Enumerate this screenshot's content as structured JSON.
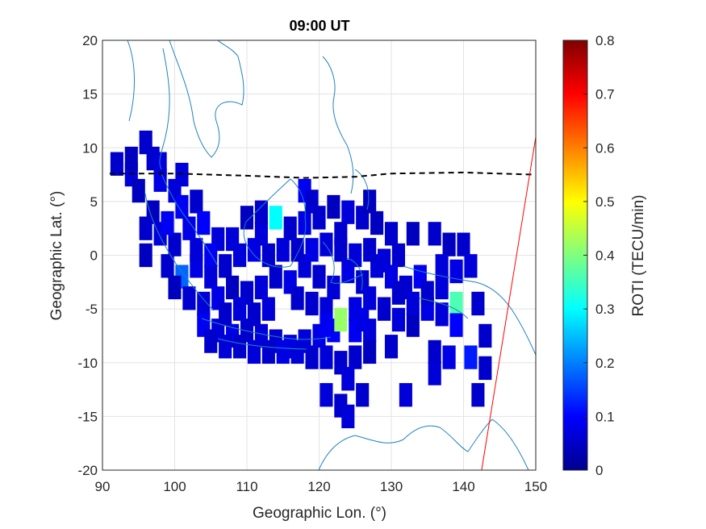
{
  "chart_data": {
    "type": "heatmap",
    "title": "09:00 UT",
    "xlabel": "Geographic Lon. (°)",
    "ylabel": "Geographic Lat. (°)",
    "xlim": [
      90,
      150
    ],
    "ylim": [
      -20,
      20
    ],
    "xticks": [
      "90",
      "100",
      "110",
      "120",
      "130",
      "140",
      "150"
    ],
    "yticks": [
      "20",
      "15",
      "10",
      "5",
      "0",
      "-5",
      "-10",
      "-15",
      "-20"
    ],
    "grid": true,
    "colorbar": {
      "label": "ROTI (TECU/min)",
      "range": [
        0,
        0.8
      ],
      "ticks": [
        "0",
        "0.1",
        "0.2",
        "0.3",
        "0.4",
        "0.5",
        "0.6",
        "0.7",
        "0.8"
      ],
      "colormap": "jet"
    },
    "magnetic_equator": {
      "style": "dashed",
      "color": "#000000",
      "x": [
        91,
        100,
        110,
        118,
        125,
        130,
        140,
        150
      ],
      "y": [
        7.6,
        7.6,
        7.4,
        7.2,
        7.3,
        7.6,
        7.7,
        7.5
      ]
    },
    "terminator": {
      "color": "#ff0000",
      "x": [
        142.5,
        150
      ],
      "y": [
        -20,
        11
      ]
    },
    "roti_cells": [
      [
        92,
        8.5,
        0.06
      ],
      [
        94,
        7.5,
        0.07
      ],
      [
        95,
        6,
        0.05
      ],
      [
        97,
        9,
        0.06
      ],
      [
        98,
        7,
        0.08
      ],
      [
        100,
        6,
        0.07
      ],
      [
        101,
        4.5,
        0.09
      ],
      [
        103,
        5,
        0.06
      ],
      [
        97,
        4,
        0.05
      ],
      [
        96,
        2.5,
        0.06
      ],
      [
        98,
        2,
        0.07
      ],
      [
        100,
        1,
        0.06
      ],
      [
        102,
        2.5,
        0.08
      ],
      [
        104,
        3,
        0.1
      ],
      [
        106,
        1.5,
        0.07
      ],
      [
        96,
        0,
        0.05
      ],
      [
        99,
        -1,
        0.06
      ],
      [
        101,
        -2,
        0.18
      ],
      [
        103,
        -1,
        0.08
      ],
      [
        105,
        -2,
        0.07
      ],
      [
        107,
        -1,
        0.06
      ],
      [
        109,
        0,
        0.07
      ],
      [
        111,
        0.5,
        0.08
      ],
      [
        113,
        0,
        0.06
      ],
      [
        110,
        3.5,
        0.05
      ],
      [
        114,
        3.5,
        0.3
      ],
      [
        112,
        2,
        0.07
      ],
      [
        116,
        2.5,
        0.06
      ],
      [
        118,
        3,
        0.08
      ],
      [
        120,
        3.5,
        0.06
      ],
      [
        122,
        4.5,
        0.05
      ],
      [
        124,
        4,
        0.07
      ],
      [
        126,
        3.5,
        0.06
      ],
      [
        128,
        3,
        0.05
      ],
      [
        118,
        6,
        0.09
      ],
      [
        130,
        2,
        0.06
      ],
      [
        131,
        0,
        0.06
      ],
      [
        133,
        2,
        0.05
      ],
      [
        136,
        2,
        0.06
      ],
      [
        138,
        1,
        0.05
      ],
      [
        140,
        1,
        0.06
      ],
      [
        137,
        -1,
        0.07
      ],
      [
        139,
        -1.5,
        0.08
      ],
      [
        141,
        -1,
        0.07
      ],
      [
        134,
        -2,
        0.09
      ],
      [
        132,
        -3,
        0.06
      ],
      [
        130,
        -2,
        0.08
      ],
      [
        128,
        -1,
        0.07
      ],
      [
        126,
        -2.5,
        0.06
      ],
      [
        124,
        -1.5,
        0.08
      ],
      [
        122,
        -3,
        0.07
      ],
      [
        120,
        -2,
        0.06
      ],
      [
        118,
        -1,
        0.07
      ],
      [
        116,
        -2.5,
        0.08
      ],
      [
        114,
        -2,
        0.06
      ],
      [
        112,
        -3,
        0.07
      ],
      [
        110,
        -3.5,
        0.06
      ],
      [
        108,
        -3,
        0.05
      ],
      [
        106,
        -4,
        0.08
      ],
      [
        104,
        -4.5,
        0.07
      ],
      [
        102,
        -4,
        0.06
      ],
      [
        100,
        -3,
        0.05
      ],
      [
        104,
        -6.5,
        0.09
      ],
      [
        106,
        -7,
        0.07
      ],
      [
        108,
        -7.5,
        0.08
      ],
      [
        110,
        -7,
        0.06
      ],
      [
        112,
        -7.5,
        0.07
      ],
      [
        114,
        -8,
        0.06
      ],
      [
        116,
        -8.5,
        0.08
      ],
      [
        118,
        -8,
        0.07
      ],
      [
        120,
        -7.5,
        0.08
      ],
      [
        122,
        -7,
        0.1
      ],
      [
        123,
        -6,
        0.42
      ],
      [
        125,
        -7,
        0.09
      ],
      [
        127,
        -7,
        0.07
      ],
      [
        125,
        -5,
        0.08
      ],
      [
        121,
        -5,
        0.07
      ],
      [
        119,
        -4.5,
        0.06
      ],
      [
        127,
        -4,
        0.07
      ],
      [
        129,
        -5,
        0.06
      ],
      [
        131,
        -6,
        0.07
      ],
      [
        133,
        -6.5,
        0.05
      ],
      [
        135,
        -5,
        0.08
      ],
      [
        137,
        -5.5,
        0.07
      ],
      [
        139,
        -4.5,
        0.36
      ],
      [
        139,
        -6.5,
        0.1
      ],
      [
        142,
        -4.5,
        0.06
      ],
      [
        143,
        -7.5,
        0.06
      ],
      [
        130,
        -8.5,
        0.06
      ],
      [
        127,
        -9,
        0.05
      ],
      [
        123,
        -10,
        0.06
      ],
      [
        121,
        -9.5,
        0.07
      ],
      [
        119,
        -9.5,
        0.06
      ],
      [
        117,
        -9,
        0.07
      ],
      [
        115,
        -9,
        0.08
      ],
      [
        113,
        -9,
        0.06
      ],
      [
        111,
        -9,
        0.07
      ],
      [
        109,
        -8.5,
        0.06
      ],
      [
        107,
        -8.5,
        0.07
      ],
      [
        105,
        -8,
        0.06
      ],
      [
        125,
        -9.5,
        0.06
      ],
      [
        124,
        -11.5,
        0.07
      ],
      [
        136,
        -9,
        0.06
      ],
      [
        138,
        -9.5,
        0.08
      ],
      [
        141,
        -9.5,
        0.12
      ],
      [
        136,
        -11,
        0.07
      ],
      [
        143,
        -10.5,
        0.06
      ],
      [
        121,
        -13,
        0.07
      ],
      [
        123,
        -14,
        0.06
      ],
      [
        124,
        -15,
        0.07
      ],
      [
        126,
        -13,
        0.06
      ],
      [
        132,
        -13,
        0.07
      ],
      [
        142,
        -13,
        0.06
      ],
      [
        105,
        0,
        0.09
      ],
      [
        108,
        1.5,
        0.07
      ],
      [
        115,
        0.5,
        0.07
      ],
      [
        117,
        0.5,
        0.06
      ],
      [
        119,
        0.5,
        0.08
      ],
      [
        121,
        1,
        0.07
      ],
      [
        123,
        0.5,
        0.06
      ],
      [
        125,
        0,
        0.07
      ],
      [
        127,
        0.5,
        0.06
      ],
      [
        129,
        -0.5,
        0.07
      ],
      [
        117,
        -4,
        0.06
      ],
      [
        113,
        -5,
        0.07
      ],
      [
        111,
        -5.5,
        0.06
      ],
      [
        109,
        -5,
        0.07
      ],
      [
        107,
        -5.5,
        0.06
      ],
      [
        99,
        3,
        0.09
      ],
      [
        103,
        0.5,
        0.07
      ],
      [
        101,
        7.5,
        0.07
      ],
      [
        94,
        9,
        0.05
      ],
      [
        96,
        10.5,
        0.06
      ],
      [
        98,
        8.5,
        0.07
      ],
      [
        112,
        4,
        0.06
      ],
      [
        123,
        2,
        0.06
      ],
      [
        127,
        5,
        0.05
      ],
      [
        119,
        5,
        0.06
      ],
      [
        121,
        -6.5,
        0.09
      ],
      [
        131,
        -3.5,
        0.06
      ],
      [
        133,
        -4.5,
        0.07
      ],
      [
        135,
        -3.5,
        0.06
      ],
      [
        137,
        -3,
        0.07
      ],
      [
        126,
        -6,
        0.08
      ]
    ]
  }
}
